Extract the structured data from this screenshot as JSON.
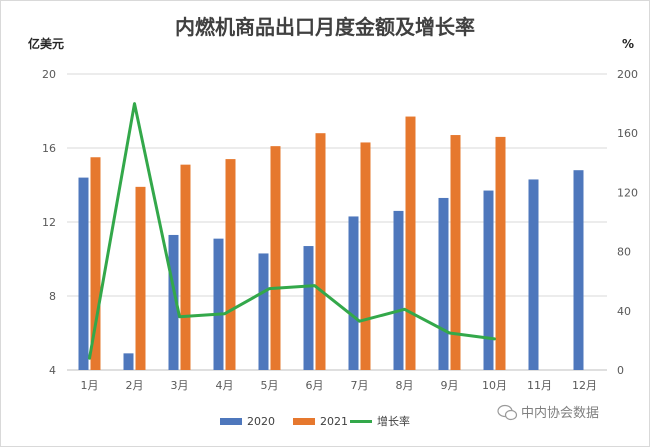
{
  "chart_data": {
    "type": "bar+line",
    "title": "内燃机商品出口月度金额及增长率",
    "ylabel_left": "亿美元",
    "ylabel_right": "%",
    "categories": [
      "1月",
      "2月",
      "3月",
      "4月",
      "5月",
      "6月",
      "7月",
      "8月",
      "9月",
      "10月",
      "11月",
      "12月"
    ],
    "ylim_left": [
      4,
      20
    ],
    "yticks_left": [
      4,
      8,
      12,
      16,
      20
    ],
    "ylim_right": [
      0,
      200
    ],
    "yticks_right": [
      0,
      40,
      80,
      120,
      160,
      200
    ],
    "series": [
      {
        "name": "2020",
        "kind": "bar",
        "axis": "left",
        "color": "#4e77bc",
        "values": [
          14.4,
          4.9,
          11.3,
          11.1,
          10.3,
          10.7,
          12.3,
          12.6,
          13.3,
          13.7,
          14.3,
          14.8
        ]
      },
      {
        "name": "2021",
        "kind": "bar",
        "axis": "left",
        "color": "#e6782e",
        "values": [
          15.5,
          13.9,
          15.1,
          15.4,
          16.1,
          16.8,
          16.3,
          17.7,
          16.7,
          16.6,
          null,
          null
        ]
      },
      {
        "name": "增长率",
        "kind": "line",
        "axis": "right",
        "color": "#33a84a",
        "values": [
          8,
          180,
          36,
          38,
          55,
          57,
          33,
          41,
          25,
          21,
          null,
          null
        ]
      }
    ],
    "grid": true,
    "legend_position": "bottom"
  },
  "watermark": "中内协会数据"
}
